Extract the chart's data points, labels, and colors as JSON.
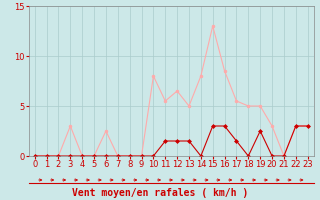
{
  "x": [
    0,
    1,
    2,
    3,
    4,
    5,
    6,
    7,
    8,
    9,
    10,
    11,
    12,
    13,
    14,
    15,
    16,
    17,
    18,
    19,
    20,
    21,
    22,
    23
  ],
  "rafales": [
    0,
    0,
    0,
    3,
    0,
    0,
    2.5,
    0,
    0,
    0,
    8,
    5.5,
    6.5,
    5,
    8,
    13,
    8.5,
    5.5,
    5,
    5,
    3,
    0,
    3,
    3
  ],
  "moyen": [
    0,
    0,
    0,
    0,
    0,
    0,
    0,
    0,
    0,
    0,
    0,
    1.5,
    1.5,
    1.5,
    0,
    3,
    3,
    1.5,
    0,
    2.5,
    0,
    0,
    3,
    3
  ],
  "color_rafales": "#ffaaaa",
  "color_moyen": "#cc0000",
  "bg_color": "#cce8e8",
  "grid_color": "#aacccc",
  "xlabel": "Vent moyen/en rafales ( km/h )",
  "ylim": [
    0,
    15
  ],
  "xlim": [
    -0.5,
    23.5
  ],
  "yticks": [
    0,
    5,
    10,
    15
  ],
  "xticks": [
    0,
    1,
    2,
    3,
    4,
    5,
    6,
    7,
    8,
    9,
    10,
    11,
    12,
    13,
    14,
    15,
    16,
    17,
    18,
    19,
    20,
    21,
    22,
    23
  ],
  "tick_color": "#cc0000",
  "label_fontsize": 7,
  "tick_fontsize": 6
}
